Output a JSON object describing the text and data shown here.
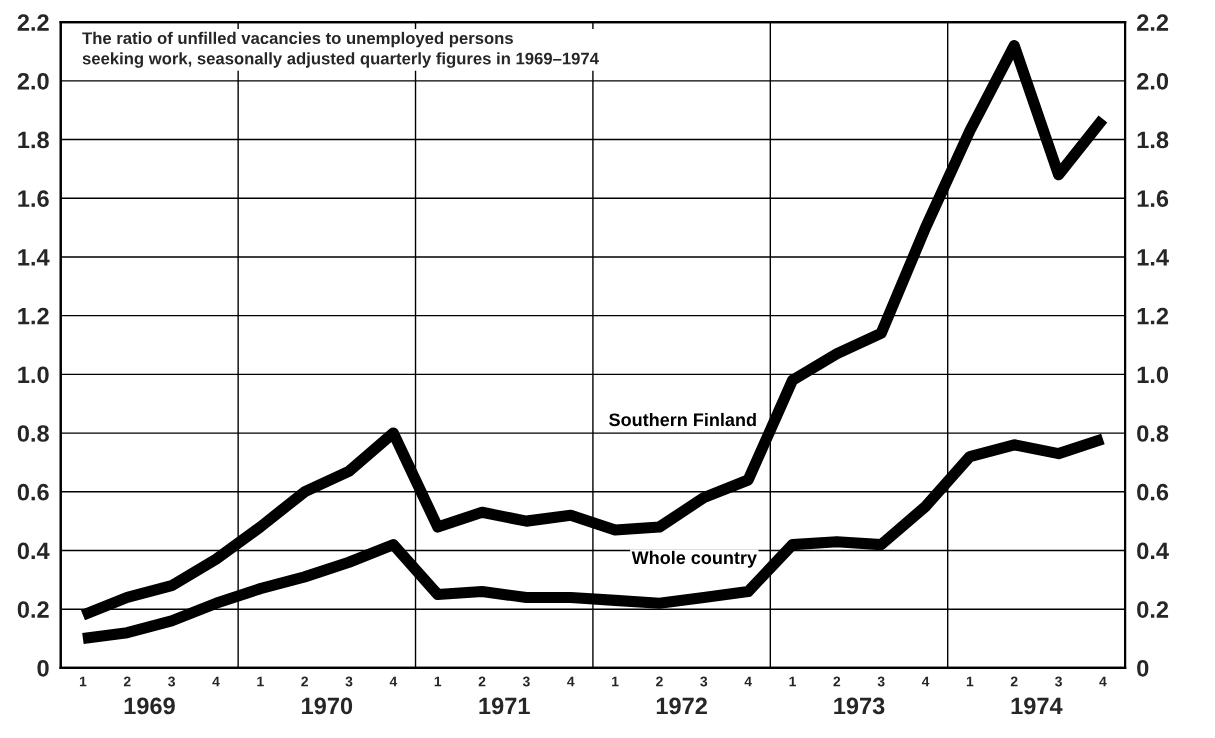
{
  "chart_data": {
    "type": "line",
    "title": "The ratio of unfilled vacancies to unemployed persons\nseeking work, seasonally adjusted quarterly figures in 1969–1974",
    "categories": [
      "1",
      "2",
      "3",
      "4",
      "1",
      "2",
      "3",
      "4",
      "1",
      "2",
      "3",
      "4",
      "1",
      "2",
      "3",
      "4",
      "1",
      "2",
      "3",
      "4",
      "1",
      "2",
      "3",
      "4"
    ],
    "annotations": [
      "1969",
      "1970",
      "1971",
      "1972",
      "1973",
      "1974"
    ],
    "series": [
      {
        "name": "Southern Finland",
        "color": "#000000",
        "values": [
          0.18,
          0.24,
          0.28,
          0.37,
          0.48,
          0.6,
          0.67,
          0.8,
          0.48,
          0.53,
          0.5,
          0.52,
          0.47,
          0.48,
          0.58,
          0.64,
          0.98,
          1.07,
          1.14,
          1.5,
          1.83,
          2.12,
          1.68,
          1.87
        ]
      },
      {
        "name": "Whole country",
        "color": "#000000",
        "values": [
          0.1,
          0.12,
          0.16,
          0.22,
          0.27,
          0.31,
          0.36,
          0.42,
          0.25,
          0.26,
          0.24,
          0.24,
          0.23,
          0.22,
          0.24,
          0.26,
          0.42,
          0.43,
          0.42,
          0.55,
          0.72,
          0.76,
          0.73,
          0.78
        ]
      }
    ],
    "ylim": [
      0,
      2.2
    ],
    "yticks": [
      0,
      {
        "value": 0.2,
        "label": "0.2"
      },
      {
        "value": 0.4,
        "label": "0.4"
      },
      {
        "value": 0.6,
        "label": "0.6"
      },
      {
        "value": 0.8,
        "label": "0.8"
      },
      {
        "value": 1.0,
        "label": "1.0"
      },
      {
        "value": 1.2,
        "label": "1.2"
      },
      {
        "value": 1.4,
        "label": "1.4"
      },
      {
        "value": 1.6,
        "label": "1.6"
      },
      {
        "value": 1.8,
        "label": "1.8"
      },
      {
        "value": 2.0,
        "label": "2.0"
      },
      {
        "value": 2.2,
        "label": "2.2"
      }
    ],
    "y2lim": [
      0,
      2.2
    ],
    "y2ticks": [
      0,
      {
        "value": 0.2,
        "label": "0.2"
      },
      {
        "value": 0.4,
        "label": "0.4"
      },
      {
        "value": 0.6,
        "label": "0.6"
      },
      {
        "value": 0.8,
        "label": "0.8"
      },
      {
        "value": 1.0,
        "label": "1.0"
      },
      {
        "value": 1.2,
        "label": "1.2"
      },
      {
        "value": 1.4,
        "label": "1.4"
      },
      {
        "value": 1.6,
        "label": "1.6"
      },
      {
        "value": 1.8,
        "label": "1.8"
      },
      {
        "value": 2.0,
        "label": "2.0"
      },
      {
        "value": 2.2,
        "label": "2.2"
      }
    ],
    "grid": "y",
    "legend": false,
    "marker": "none",
    "line_style": "solid"
  }
}
